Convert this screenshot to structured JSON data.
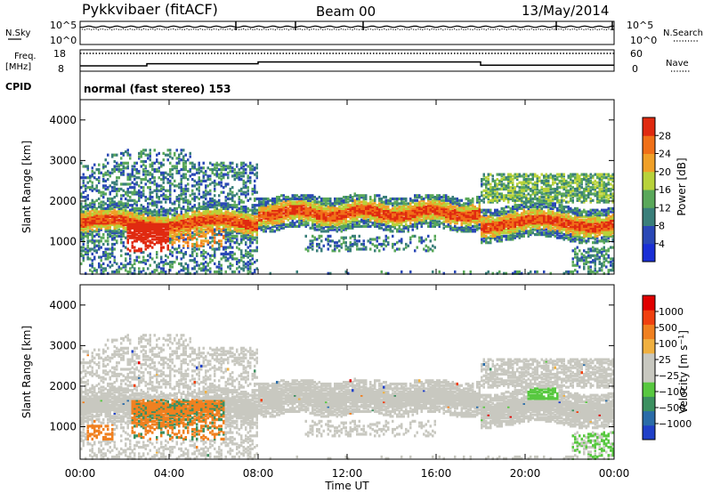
{
  "header": {
    "title": "Pykkvibaer (fitACF)",
    "beam": "Beam 00",
    "date": "13/May/2014"
  },
  "labels": {
    "nsky": "N.Sky",
    "nsearch": "N.Search",
    "freq": "Freq.",
    "mhz": "[MHz]",
    "nave": "Nave",
    "cpid": "CPID",
    "cpid_value": "normal (fast stereo) 153",
    "noise_ticks": [
      "10^5",
      "10^0"
    ],
    "freq_ticks": [
      "18",
      "8"
    ],
    "nave_ticks": [
      "60",
      "0"
    ]
  },
  "chart_data": [
    {
      "type": "line",
      "name": "noise",
      "series": [
        {
          "name": "N.Sky"
        },
        {
          "name": "N.Search"
        }
      ],
      "ylim": [
        "10^0",
        "10^5"
      ]
    },
    {
      "type": "line",
      "name": "frequency-nave",
      "series": [
        {
          "name": "Freq.",
          "x": [
            "00:00",
            "02:30",
            "03:00",
            "08:00",
            "18:00",
            "24:00"
          ],
          "values": [
            10.5,
            10.5,
            11.5,
            12.3,
            10.8,
            10.8
          ]
        },
        {
          "name": "Nave",
          "x": [
            "00:00",
            "24:00"
          ],
          "values": [
            50,
            50
          ]
        }
      ],
      "freq_ylim": [
        8,
        18
      ],
      "nave_ylim": [
        0,
        60
      ]
    },
    {
      "type": "heatmap",
      "name": "power",
      "ylabel": "Slant Range [km]",
      "yticks": [
        "1000",
        "2000",
        "3000",
        "4000"
      ],
      "ylim": [
        200,
        4500
      ],
      "colorbar_label": "Power [dB]",
      "colorbar_ticks": [
        "4",
        "8",
        "12",
        "16",
        "20",
        "24",
        "28"
      ],
      "colors": [
        "#1a2fd6",
        "#2a48b6",
        "#3a7f7a",
        "#5aa85a",
        "#b8d23a",
        "#f0a028",
        "#f07018",
        "#e02a10"
      ]
    },
    {
      "type": "heatmap",
      "name": "velocity",
      "ylabel": "Slant Range [km]",
      "yticks": [
        "1000",
        "2000",
        "3000",
        "4000"
      ],
      "ylim": [
        200,
        4500
      ],
      "colorbar_label": "Velocity [m s^-1]",
      "colorbar_ticks": [
        "1000",
        "500",
        "100",
        "25",
        "−25",
        "−100",
        "−500",
        "−1000"
      ],
      "colors": [
        "#2040c8",
        "#2a6ca8",
        "#3c9060",
        "#58c840",
        "#c8c8c0",
        "#c8c8c0",
        "#f0b040",
        "#f08020",
        "#f04010",
        "#e00000"
      ]
    }
  ],
  "xaxis": {
    "label": "Time UT",
    "ticks": [
      "00:00",
      "04:00",
      "08:00",
      "12:00",
      "16:00",
      "20:00",
      "00:00"
    ]
  }
}
